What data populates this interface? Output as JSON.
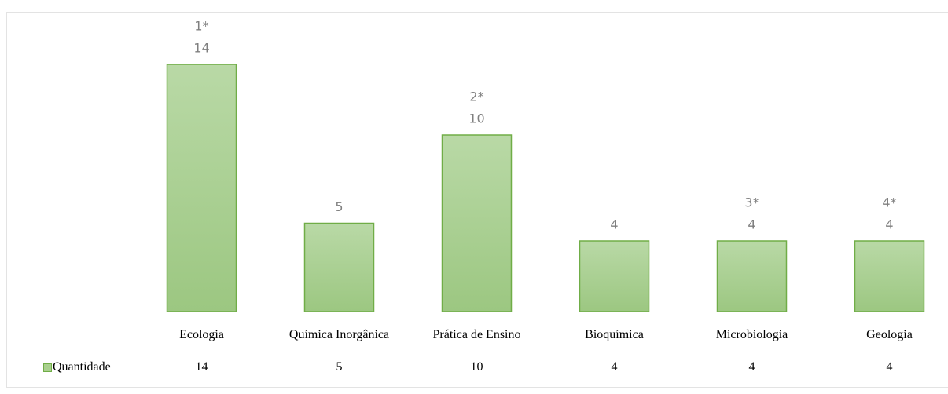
{
  "chart_data": {
    "type": "bar",
    "categories": [
      "Ecologia",
      "Química Inorgânica",
      "Prática de Ensino",
      "Bioquímica",
      "Microbiologia",
      "Geologia"
    ],
    "series": [
      {
        "name": "Quantidade",
        "color": "#a9d08e",
        "values": [
          14,
          5,
          10,
          4,
          4,
          4
        ]
      }
    ],
    "annotations": [
      "1*",
      null,
      "2*",
      null,
      "3*",
      "4*"
    ],
    "ylim": [
      0,
      14
    ],
    "grid": false,
    "data_table": true
  }
}
